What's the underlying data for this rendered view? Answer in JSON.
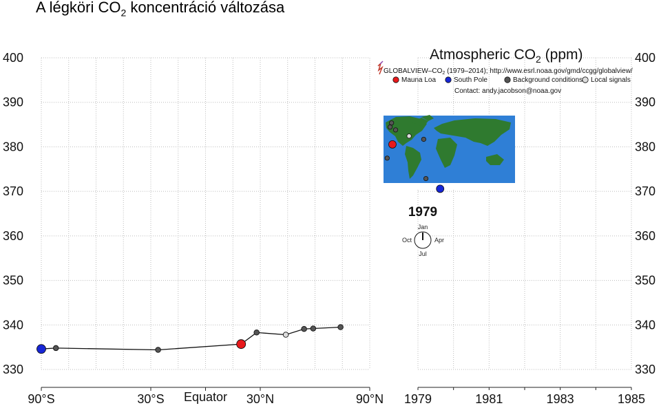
{
  "slide": {
    "title_main": "A légköri CO",
    "title_sub": "2",
    "title_rest": " koncentráció változása"
  },
  "colors": {
    "mauna_loa": "#e8191c",
    "south_pole": "#1726d6",
    "background": "#555555",
    "local": "#dddddd",
    "ocean": "#2f7fd6",
    "land": "#2f7a2f",
    "ice": "#ffffff"
  },
  "chart_data": {
    "type": "scatter",
    "title": "Atmospheric CO",
    "title_sub": "2",
    "title_unit": " (ppm)",
    "source_prefix": "GLOBALVIEW–CO",
    "source_sub": "2",
    "source_suffix": " (1979–2014); http://www.esrl.noaa.gov/gmd/ccgg/globalview/",
    "contact": "Contact: andy.jacobson@noaa.gov",
    "legend": [
      {
        "label": "Mauna Loa",
        "color": "#e8191c"
      },
      {
        "label": "South Pole",
        "color": "#1726d6"
      },
      {
        "label": "Background conditions",
        "color": "#555555"
      },
      {
        "label": "Local signals",
        "color": "#dddddd"
      }
    ],
    "year": "1979",
    "clock": {
      "top": "Jan",
      "right": "Apr",
      "bottom": "Jul",
      "left": "Oct"
    },
    "ylim": [
      330,
      400
    ],
    "yticks": [
      "330",
      "340",
      "350",
      "360",
      "370",
      "380",
      "390",
      "400"
    ],
    "left_panel": {
      "xlim": [
        -90,
        90
      ],
      "xticks": [
        {
          "value": -90,
          "label": "90°S"
        },
        {
          "value": -30,
          "label": "30°S"
        },
        {
          "value": 0,
          "label": "Equator"
        },
        {
          "value": 30,
          "label": "30°N"
        },
        {
          "value": 90,
          "label": "90°N"
        }
      ],
      "points": [
        {
          "lat": -90,
          "co2": 334.6,
          "kind": "south_pole"
        },
        {
          "lat": -82,
          "co2": 334.8,
          "kind": "background"
        },
        {
          "lat": -26,
          "co2": 334.4,
          "kind": "background"
        },
        {
          "lat": 19.5,
          "co2": 335.7,
          "kind": "mauna_loa"
        },
        {
          "lat": 28,
          "co2": 338.3,
          "kind": "background"
        },
        {
          "lat": 44,
          "co2": 337.8,
          "kind": "local"
        },
        {
          "lat": 54,
          "co2": 339.1,
          "kind": "background"
        },
        {
          "lat": 59,
          "co2": 339.2,
          "kind": "background"
        },
        {
          "lat": 74,
          "co2": 339.5,
          "kind": "background"
        }
      ]
    },
    "right_panel": {
      "xlim": [
        1979,
        1985
      ],
      "xticks": [
        "1979",
        "1981",
        "1983",
        "1985"
      ]
    },
    "map_markers": [
      {
        "lon": -158,
        "lat": 72,
        "kind": "background"
      },
      {
        "lon": -162,
        "lat": 62,
        "kind": "background"
      },
      {
        "lon": -147,
        "lat": 55,
        "kind": "background"
      },
      {
        "lon": -155.6,
        "lat": 19.5,
        "kind": "mauna_loa"
      },
      {
        "lon": -110,
        "lat": 40,
        "kind": "local"
      },
      {
        "lon": -70,
        "lat": 32,
        "kind": "background"
      },
      {
        "lon": -170,
        "lat": -14,
        "kind": "background"
      },
      {
        "lon": -64,
        "lat": -64,
        "kind": "background"
      },
      {
        "lon": -25,
        "lat": -89,
        "kind": "south_pole"
      }
    ]
  }
}
